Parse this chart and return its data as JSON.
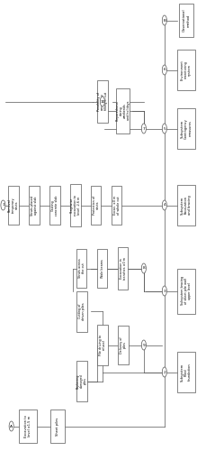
{
  "bg": "#ffffff",
  "ec": "#555555",
  "rc": 0.011,
  "spine_fx": 0.795,
  "boxes": {
    "excav_bottom": {
      "fx": 0.135,
      "fy": 0.055,
      "fw": 0.085,
      "fh": 0.075,
      "label": "Excavation to\nlevel ±1.5 m",
      "fs": 2.6
    },
    "sheet_piles": {
      "fx": 0.28,
      "fy": 0.055,
      "fw": 0.07,
      "fh": 0.075,
      "label": "Sheet piles",
      "fs": 2.6
    },
    "sub2_box": {
      "fx": 0.9,
      "fy": 0.175,
      "fw": 0.085,
      "fh": 0.09,
      "label": "Subsystem\nPiled\nfoundation",
      "fs": 2.6
    },
    "sub3_box": {
      "fx": 0.9,
      "fy": 0.355,
      "fw": 0.085,
      "fh": 0.1,
      "label": "Subsystem bracing\nof sheet pile wall\nupper level",
      "fs": 2.4
    },
    "sub4_box": {
      "fx": 0.9,
      "fy": 0.545,
      "fw": 0.085,
      "fh": 0.09,
      "label": "Subsystem\nExcavation\nand bracing",
      "fs": 2.6
    },
    "sub5_box": {
      "fx": 0.9,
      "fy": 0.715,
      "fw": 0.085,
      "fh": 0.09,
      "label": "Subsystem\nContingency\nmeasures",
      "fs": 2.6
    },
    "sub6_box": {
      "fx": 0.9,
      "fy": 0.845,
      "fw": 0.085,
      "fh": 0.09,
      "label": "Environment\nmonitoring\nsystem",
      "fs": 2.5
    },
    "subB_box": {
      "fx": 0.9,
      "fy": 0.955,
      "fw": 0.07,
      "fh": 0.075,
      "label": "Observational\nmethod",
      "fs": 2.6
    },
    "cut_driven": {
      "fx": 0.395,
      "fy": 0.31,
      "fw": 0.055,
      "fh": 0.09,
      "label": "Cutting of\ndriven piles",
      "fs": 2.4
    },
    "pile_drive": {
      "fx": 0.495,
      "fy": 0.235,
      "fw": 0.055,
      "fh": 0.09,
      "label": "Pile driving to\nrefusal",
      "fs": 2.4
    },
    "repl_dam": {
      "fx": 0.395,
      "fy": 0.155,
      "fw": 0.055,
      "fh": 0.09,
      "label": "Replacing\ndamaged\npiles",
      "fs": 2.4
    },
    "deliv_piles": {
      "fx": 0.595,
      "fy": 0.235,
      "fw": 0.055,
      "fh": 0.085,
      "label": "Delivery of\npiles",
      "fs": 2.4
    },
    "struts_cut": {
      "fx": 0.395,
      "fy": 0.405,
      "fw": 0.048,
      "fh": 0.085,
      "label": "Struts across\nthe cut",
      "fs": 2.4
    },
    "wale_beams": {
      "fx": 0.495,
      "fy": 0.405,
      "fw": 0.048,
      "fh": 0.085,
      "label": "Wale beams",
      "fs": 2.4
    },
    "excav_trench": {
      "fx": 0.595,
      "fy": 0.405,
      "fw": 0.048,
      "fh": 0.095,
      "label": "Excavation in\ntrenches ±0 m",
      "fs": 2.4
    },
    "rem_struts": {
      "fx": 0.065,
      "fy": 0.545,
      "fw": 0.055,
      "fh": 0.085,
      "label": "Removal\ntemporary\nstruts",
      "fs": 2.4
    },
    "struts_slab": {
      "fx": 0.165,
      "fy": 0.545,
      "fw": 0.055,
      "fh": 0.085,
      "label": "Struts placed\nagainst slab",
      "fs": 2.4
    },
    "cast_conc": {
      "fx": 0.265,
      "fy": 0.545,
      "fw": 0.055,
      "fh": 0.085,
      "label": "Casting\nconcrete slab",
      "fs": 2.4
    },
    "stage_excav": {
      "fx": 0.365,
      "fy": 0.545,
      "fw": 0.055,
      "fh": 0.095,
      "label": "Stagewise\nexcavation to\nlevel -2.6 m",
      "fs": 2.4
    },
    "prot_struts": {
      "fx": 0.465,
      "fy": 0.545,
      "fw": 0.048,
      "fh": 0.085,
      "label": "Protection of\nstruts",
      "fs": 2.4
    },
    "excav_whole": {
      "fx": 0.565,
      "fy": 0.545,
      "fw": 0.048,
      "fh": 0.085,
      "label": "Excav. ±0 m\nof whole cut",
      "fs": 2.4
    },
    "poss_emerg": {
      "fx": 0.495,
      "fy": 0.775,
      "fw": 0.055,
      "fh": 0.095,
      "label": "Possibility of\nemergency\nfilling of cut",
      "fs": 2.4
    },
    "prepared": {
      "fx": 0.595,
      "fy": 0.755,
      "fw": 0.065,
      "fh": 0.1,
      "label": "Preparedness\nduring\nweekends\nand holidays",
      "fs": 2.4
    }
  },
  "circles": {
    "A": {
      "fx": 0.055,
      "fy": 0.055
    },
    "B": {
      "fx": 0.795,
      "fy": 0.955
    },
    "c2": {
      "fx": 0.795,
      "fy": 0.175
    },
    "c3": {
      "fx": 0.795,
      "fy": 0.355
    },
    "c4": {
      "fx": 0.795,
      "fy": 0.545
    },
    "c5": {
      "fx": 0.795,
      "fy": 0.715
    },
    "c6": {
      "fx": 0.795,
      "fy": 0.845
    },
    "c1": {
      "fx": 0.015,
      "fy": 0.545
    },
    "c8": {
      "fx": 0.695,
      "fy": 0.405
    },
    "c9": {
      "fx": 0.695,
      "fy": 0.235
    },
    "c10": {
      "fx": 0.495,
      "fy": 0.775
    },
    "c7": {
      "fx": 0.695,
      "fy": 0.715
    }
  },
  "circle_labels": {
    "A": "A",
    "B": "B",
    "c2": "2",
    "c3": "3",
    "c4": "4",
    "c5": "5",
    "c6": "6",
    "c1": "1",
    "c8": "8",
    "c9": "9",
    "c10": "10",
    "c7": "7"
  }
}
